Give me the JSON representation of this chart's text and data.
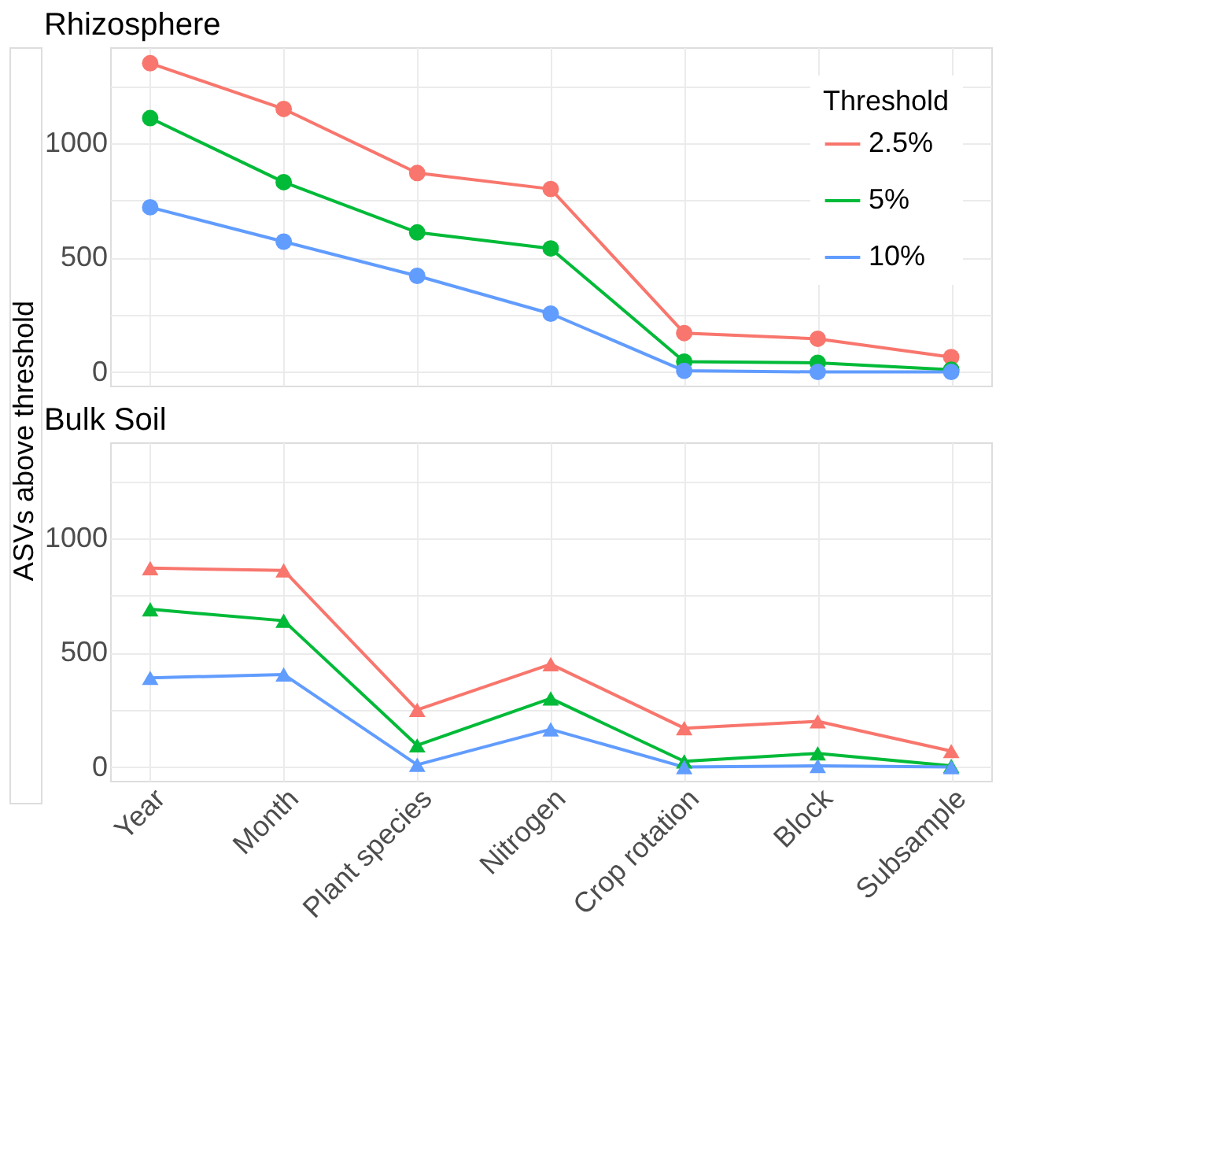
{
  "chart_data": [
    {
      "type": "line",
      "title": "Rhizosphere",
      "categories": [
        null,
        null,
        null,
        null,
        null,
        null,
        null
      ],
      "legend_title": "Threshold",
      "legend": "top right",
      "marker": "circle",
      "line_style": "solid",
      "grid": true,
      "tick_labels": "y",
      "ylim": [
        -60,
        1420
      ],
      "yticks": [
        0,
        {
          "value": 250,
          "label": null
        },
        500,
        {
          "value": 750,
          "label": null
        },
        1000,
        {
          "value": 1250,
          "label": null
        }
      ],
      "series": [
        {
          "name": "2.5%",
          "color": "#f8766d",
          "values": [
            1350,
            1150,
            870,
            800,
            170,
            145,
            65
          ]
        },
        {
          "name": "5%",
          "color": "#00ba38",
          "values": [
            1110,
            830,
            610,
            540,
            45,
            40,
            10
          ]
        },
        {
          "name": "10%",
          "color": "#619cff",
          "values": [
            720,
            570,
            420,
            255,
            5,
            0,
            0
          ]
        }
      ]
    },
    {
      "type": "line",
      "title": "Bulk Soil",
      "ylabel": "ASVs above threshold",
      "categories": [
        "Year",
        "Month",
        "Plant species",
        "Nitrogen",
        "Crop rotation",
        "Block",
        "Subsample"
      ],
      "marker": "triangle",
      "line_style": "solid",
      "grid": true,
      "ylim": [
        -60,
        1420
      ],
      "yticks": [
        0,
        {
          "value": 250,
          "label": null
        },
        500,
        {
          "value": 750,
          "label": null
        },
        1000,
        {
          "value": 1250,
          "label": null
        }
      ],
      "series": [
        {
          "color": "#f8766d",
          "values": [
            870,
            860,
            250,
            450,
            170,
            200,
            70
          ]
        },
        {
          "color": "#00ba38",
          "values": [
            690,
            640,
            95,
            300,
            25,
            60,
            5
          ]
        },
        {
          "color": "#619cff",
          "values": [
            390,
            405,
            10,
            165,
            0,
            5,
            0
          ]
        }
      ]
    }
  ]
}
